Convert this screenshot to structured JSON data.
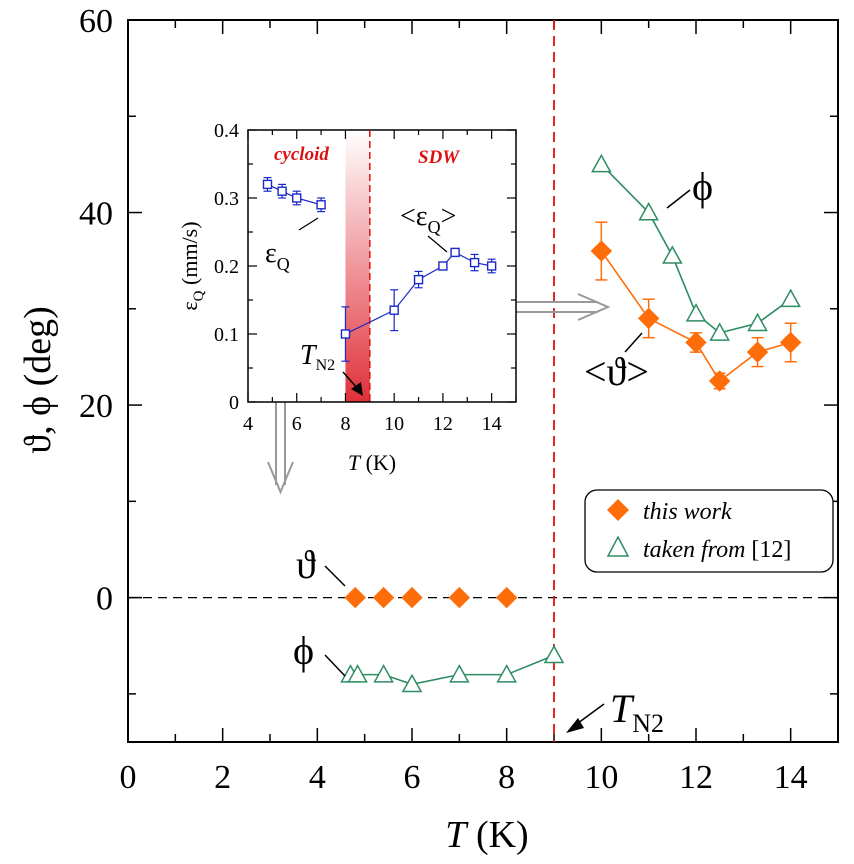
{
  "colors": {
    "this_work": "#ff6d0a",
    "reference": "#2e8b62",
    "inset_series": "#1a28c8",
    "transition_line": "#dd1111",
    "arrow": "#999999"
  },
  "chart_data": [
    {
      "type": "scatter",
      "title": "",
      "xlabel": "T (K)",
      "ylabel": "ϑ, ϕ (deg)",
      "xlim": [
        0,
        15
      ],
      "ylim": [
        -15,
        60
      ],
      "x_ticks": [
        "0",
        "2",
        "4",
        "6",
        "8",
        "10",
        "12",
        "14"
      ],
      "y_ticks": [
        "0",
        "20",
        "40",
        "60"
      ],
      "zero_line": true,
      "transition": {
        "x": 9,
        "label": "T",
        "subscript": "N2"
      },
      "legend": {
        "placement": "right-middle",
        "entries": [
          {
            "label": "this work",
            "marker": "filled-diamond",
            "suffix": ""
          },
          {
            "label": "taken from",
            "marker": "open-triangle",
            "suffix": " [12]"
          }
        ]
      },
      "series": [
        {
          "name": "ϑ (this work, low T)",
          "marker": "filled-diamond",
          "connected": false,
          "x": [
            4.8,
            5.4,
            6.0,
            7.0,
            8.0
          ],
          "y": [
            0,
            0,
            0,
            0,
            0
          ]
        },
        {
          "name": "ϕ (taken from [12], low T)",
          "marker": "open-triangle",
          "connected": true,
          "x": [
            4.7,
            4.85,
            5.4,
            6.0,
            7.0,
            8.0,
            9.0
          ],
          "y": [
            -8,
            -8,
            -8,
            -9,
            -8,
            -8,
            -6
          ]
        },
        {
          "name": "<ϑ> (this work)",
          "marker": "filled-diamond",
          "connected": true,
          "x": [
            10,
            11,
            12,
            12.5,
            13.3,
            14
          ],
          "y": [
            36,
            29,
            26.5,
            22.5,
            25.5,
            26.5
          ],
          "err": [
            3,
            2,
            1,
            0.8,
            1.5,
            2
          ]
        },
        {
          "name": "ϕ (taken from [12])",
          "marker": "open-triangle",
          "connected": true,
          "x": [
            10,
            11,
            11.5,
            12,
            12.5,
            13.3,
            14
          ],
          "y": [
            45,
            40,
            35.5,
            29.5,
            27.5,
            28.5,
            31
          ]
        }
      ],
      "annotations": [
        {
          "text": "ϕ",
          "near": "upper branch"
        },
        {
          "text": "<ϑ>",
          "near": "upper branch"
        },
        {
          "text": "ϑ",
          "near": "zero line"
        },
        {
          "text": "ϕ",
          "near": "lower branch"
        }
      ]
    },
    {
      "type": "line",
      "title": "",
      "xlabel": "T (K)",
      "ylabel": "ε_Q (mm/s)",
      "xlim": [
        4,
        15
      ],
      "ylim": [
        0,
        0.4
      ],
      "x_ticks": [
        "4",
        "6",
        "8",
        "10",
        "12",
        "14"
      ],
      "y_ticks": [
        "0",
        "0.1",
        "0.2",
        "0.3",
        "0.4"
      ],
      "regions": [
        {
          "label": "cycloid"
        },
        {
          "label": "SDW"
        }
      ],
      "transition": {
        "x": 9,
        "label": "T",
        "subscript": "N2"
      },
      "series": [
        {
          "name": "εQ",
          "label_main": "ε",
          "label_sub": "Q",
          "x": [
            4.8,
            5.4,
            6.0,
            7.0
          ],
          "y": [
            0.32,
            0.31,
            0.3,
            0.29
          ],
          "err": [
            0.01,
            0.01,
            0.01,
            0.01
          ]
        },
        {
          "name": "<εQ>",
          "label_main": "<ε",
          "label_sub": "Q",
          "label_tail": ">",
          "x": [
            8,
            10,
            11,
            12,
            12.5,
            13.3,
            14
          ],
          "y": [
            0.1,
            0.135,
            0.18,
            0.2,
            0.22,
            0.205,
            0.2
          ],
          "err": [
            0.04,
            0.03,
            0.012,
            0.005,
            0.005,
            0.012,
            0.01
          ]
        }
      ]
    }
  ]
}
